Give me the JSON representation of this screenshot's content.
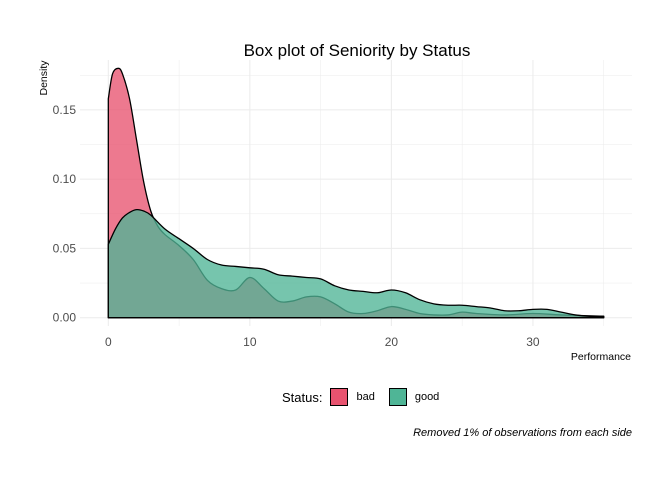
{
  "chart_data": {
    "type": "area",
    "title": "Box plot of Seniority by Status",
    "xlabel": "Performance",
    "ylabel": "Density",
    "xlim": [
      -2,
      37
    ],
    "ylim": [
      -0.006,
      0.186
    ],
    "xticks": [
      0,
      10,
      20,
      30
    ],
    "yticks": [
      0.0,
      0.05,
      0.1,
      0.15
    ],
    "ytick_labels": [
      "0.00",
      "0.05",
      "0.10",
      "0.15"
    ],
    "grid": true,
    "legend": {
      "title": "Status:",
      "position": "bottom"
    },
    "caption": "Removed 1% of observations from each side",
    "colors": {
      "bad": "#e8536f",
      "good": "#4fb596",
      "outline": "#000000",
      "grid": "#ebebeb"
    },
    "series": [
      {
        "name": "bad",
        "color": "#e8536f",
        "x": [
          0,
          0.3,
          0.7,
          1,
          1.5,
          2,
          2.5,
          3,
          3.5,
          4,
          5,
          6,
          7,
          8,
          9,
          10,
          11,
          12,
          13,
          14,
          15,
          16,
          17,
          18,
          19,
          20,
          21,
          22,
          23,
          24,
          25,
          26,
          28,
          30,
          32,
          35
        ],
        "y": [
          0.158,
          0.176,
          0.18,
          0.176,
          0.158,
          0.128,
          0.098,
          0.077,
          0.066,
          0.06,
          0.052,
          0.042,
          0.027,
          0.021,
          0.02,
          0.029,
          0.021,
          0.012,
          0.012,
          0.015,
          0.015,
          0.01,
          0.004,
          0.003,
          0.005,
          0.008,
          0.006,
          0.003,
          0.002,
          0.002,
          0.004,
          0.003,
          0.002,
          0.003,
          0.002,
          0.001
        ]
      },
      {
        "name": "good",
        "color": "#4fb596",
        "x": [
          0,
          0.5,
          1,
          1.5,
          2,
          2.5,
          3,
          4,
          5,
          6,
          7,
          8,
          9,
          10,
          11,
          12,
          13,
          14,
          15,
          16,
          17,
          18,
          19,
          20,
          21,
          22,
          23,
          24,
          25,
          26,
          27,
          28,
          29,
          30,
          31,
          32,
          33,
          34,
          35
        ],
        "y": [
          0.053,
          0.064,
          0.072,
          0.076,
          0.078,
          0.077,
          0.074,
          0.064,
          0.057,
          0.05,
          0.042,
          0.038,
          0.037,
          0.036,
          0.035,
          0.031,
          0.03,
          0.029,
          0.028,
          0.023,
          0.02,
          0.019,
          0.018,
          0.02,
          0.018,
          0.013,
          0.01,
          0.009,
          0.009,
          0.008,
          0.007,
          0.005,
          0.005,
          0.006,
          0.006,
          0.004,
          0.002,
          0.001,
          0.001
        ]
      }
    ]
  }
}
